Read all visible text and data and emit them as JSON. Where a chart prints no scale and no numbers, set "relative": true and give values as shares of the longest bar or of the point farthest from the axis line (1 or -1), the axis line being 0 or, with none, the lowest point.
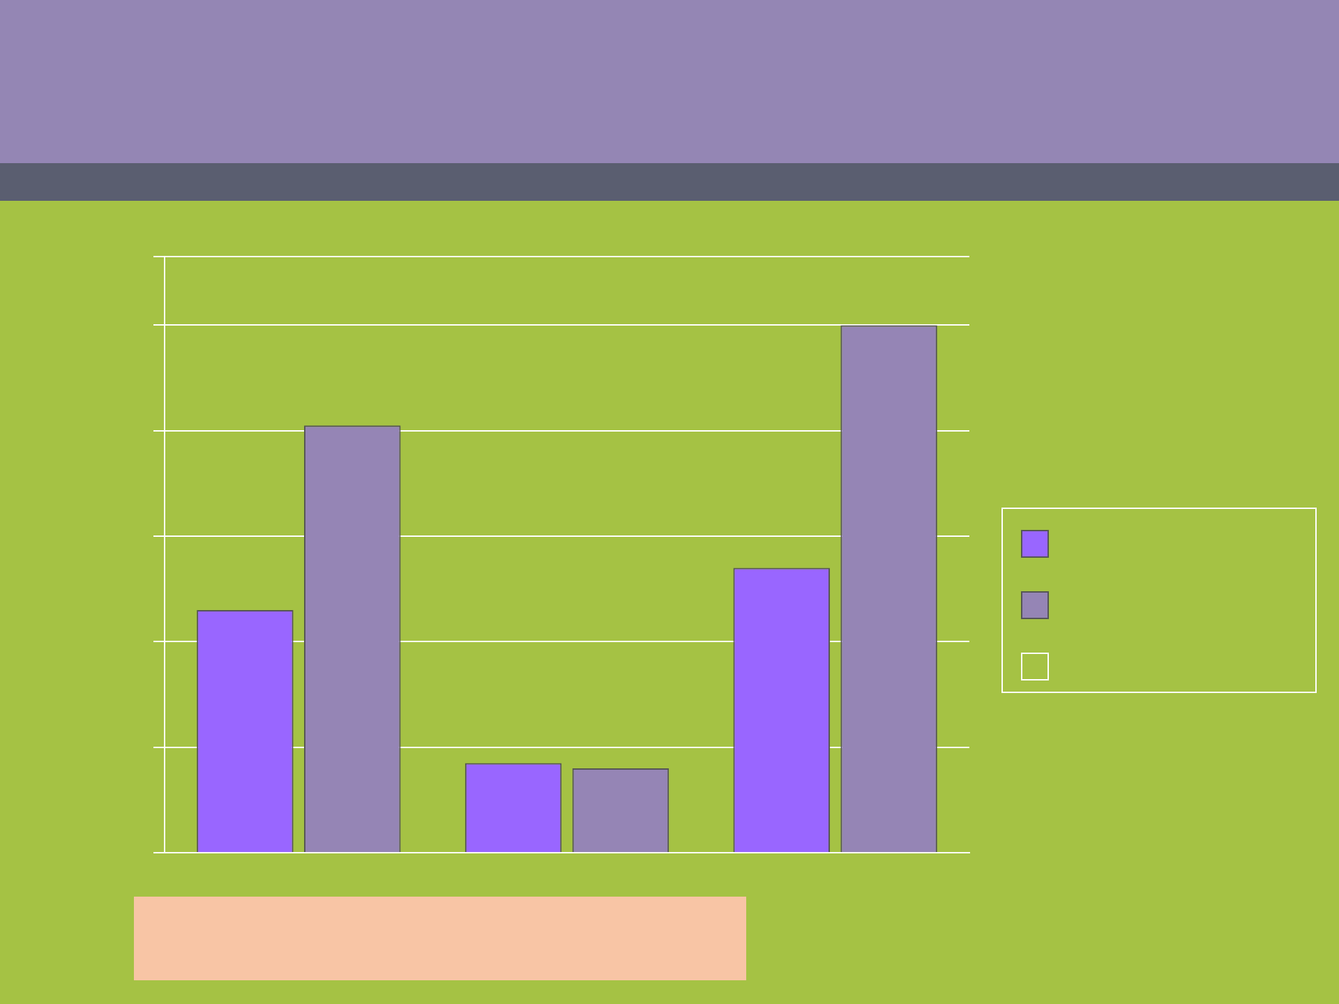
{
  "chart_data": {
    "type": "bar",
    "relative": true,
    "grid": "y",
    "categories": [
      null,
      null,
      null
    ],
    "series": [
      {
        "color": "#9966ff",
        "values": [
          0.46,
          0.17,
          0.54
        ]
      },
      {
        "color": "#9585b5",
        "values": [
          0.81,
          0.16,
          1
        ]
      }
    ]
  }
}
